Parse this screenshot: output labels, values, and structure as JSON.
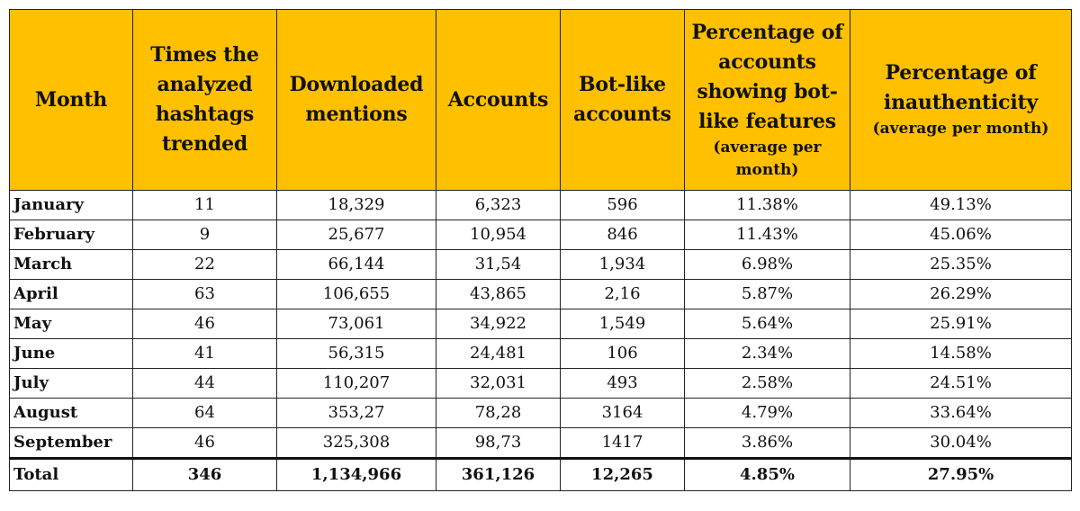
{
  "table": {
    "headers": [
      {
        "main": "Month",
        "sub": ""
      },
      {
        "main": "Times the analyzed hashtags trended",
        "sub": ""
      },
      {
        "main": "Downloaded mentions",
        "sub": ""
      },
      {
        "main": "Accounts",
        "sub": ""
      },
      {
        "main": "Bot-like accounts",
        "sub": ""
      },
      {
        "main": "Percentage of accounts showing bot-like features",
        "sub": "(average per month)"
      },
      {
        "main": "Percentage of inauthenticity",
        "sub": "(average per month)"
      }
    ],
    "rows": [
      [
        "January",
        "11",
        "18,329",
        "6,323",
        "596",
        "11.38%",
        "49.13%"
      ],
      [
        "February",
        "9",
        "25,677",
        "10,954",
        "846",
        "11.43%",
        "45.06%"
      ],
      [
        "March",
        "22",
        "66,144",
        "31,54",
        "1,934",
        "6.98%",
        "25.35%"
      ],
      [
        "April",
        "63",
        "106,655",
        "43,865",
        "2,16",
        "5.87%",
        "26.29%"
      ],
      [
        "May",
        "46",
        "73,061",
        "34,922",
        "1,549",
        "5.64%",
        "25.91%"
      ],
      [
        "June",
        "41",
        "56,315",
        "24,481",
        "106",
        "2.34%",
        "14.58%"
      ],
      [
        "July",
        "44",
        "110,207",
        "32,031",
        "493",
        "2.58%",
        "24.51%"
      ],
      [
        "August",
        "64",
        "353,27",
        "78,28",
        "3164",
        "4.79%",
        "33.64%"
      ],
      [
        "September",
        "46",
        "325,308",
        "98,73",
        "1417",
        "3.86%",
        "30.04%"
      ]
    ],
    "total": [
      "Total",
      "346",
      "1,134,966",
      "361,126",
      "12,265",
      "4.85%",
      "27.95%"
    ]
  }
}
